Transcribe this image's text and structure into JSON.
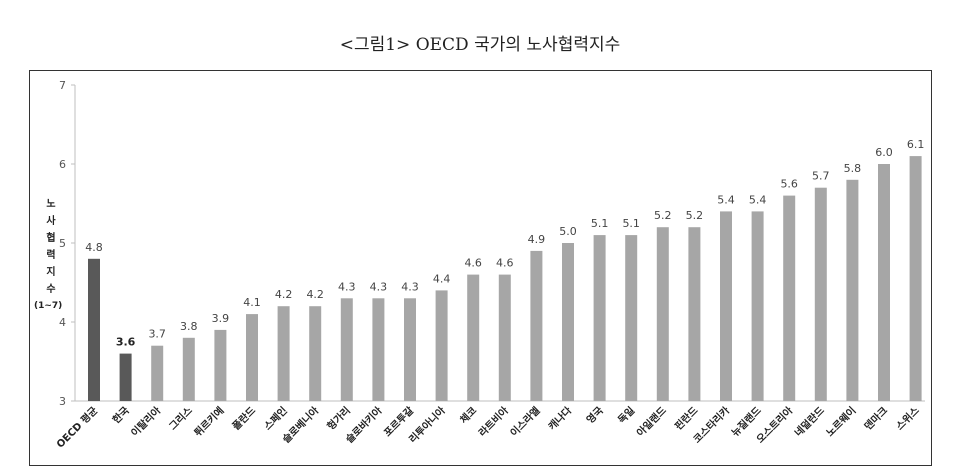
{
  "chart_data": {
    "type": "bar",
    "title": "<그림1> OECD 국가의 노사협력지수",
    "ylabel_chars": [
      "노",
      "사",
      "협",
      "력",
      "지",
      "수"
    ],
    "ylabel_unit": "(1~7)",
    "ylim": [
      3,
      7
    ],
    "yticks": [
      "3",
      "4",
      "5",
      "6",
      "7"
    ],
    "categories": [
      "OECD 평균",
      "한국",
      "이탈리아",
      "그리스",
      "튀르키예",
      "폴란드",
      "스페인",
      "슬로베니아",
      "헝가리",
      "슬로바키아",
      "포르투갈",
      "리투아니아",
      "체코",
      "라트비아",
      "이스라엘",
      "캐나다",
      "영국",
      "독일",
      "아일랜드",
      "핀란드",
      "코스타리카",
      "뉴질랜드",
      "오스트리아",
      "네덜란드",
      "노르웨이",
      "덴마크",
      "스위스"
    ],
    "values": [
      4.8,
      3.6,
      3.7,
      3.8,
      3.9,
      4.1,
      4.2,
      4.2,
      4.3,
      4.3,
      4.3,
      4.4,
      4.6,
      4.6,
      4.9,
      5.0,
      5.1,
      5.1,
      5.2,
      5.2,
      5.4,
      5.4,
      5.6,
      5.7,
      5.8,
      6.0,
      6.1
    ],
    "value_labels": [
      "4.8",
      "3.6",
      "3.7",
      "3.8",
      "3.9",
      "4.1",
      "4.2",
      "4.2",
      "4.3",
      "4.3",
      "4.3",
      "4.4",
      "4.6",
      "4.6",
      "4.9",
      "5.0",
      "5.1",
      "5.1",
      "5.2",
      "5.2",
      "5.4",
      "5.4",
      "5.6",
      "5.7",
      "5.8",
      "6.0",
      "6.1"
    ],
    "highlight_categories": [
      "OECD 평균",
      "한국"
    ],
    "grid": false,
    "legend": "none",
    "colors": {
      "bar": "#a6a6a6",
      "highlight": "#595959",
      "axis": "#bfbfbf"
    }
  }
}
